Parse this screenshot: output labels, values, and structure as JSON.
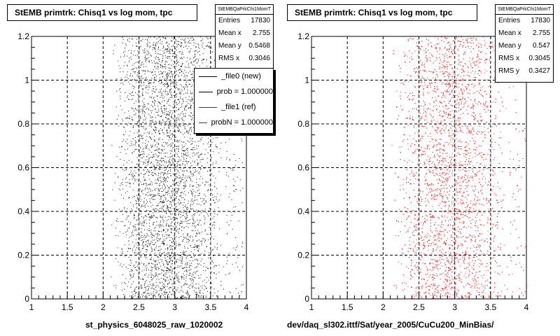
{
  "chart_data": [
    {
      "type": "scatter",
      "title": "StEMB primtrk: Chisq1 vs log mom, tpc",
      "xlabel": "st_physics_6048025_raw_1020002",
      "ylabel": "",
      "xlim": [
        1,
        4
      ],
      "ylim": [
        0,
        1.2
      ],
      "x_ticks": [
        "1",
        "1.5",
        "2",
        "2.5",
        "3",
        "3.5",
        "4"
      ],
      "y_ticks": [
        "0",
        "0.2",
        "0.4",
        "0.6",
        "0.8",
        "1",
        "1.2"
      ],
      "grid": true,
      "marker_color": "#000000",
      "x_distribution": {
        "min": 2.1,
        "max": 3.7,
        "peak": 2.75
      },
      "y_distribution": {
        "min": 0,
        "max": 1.2
      },
      "stats": {
        "header": "StEMBQaPrkChi1MomT",
        "rows": [
          {
            "label": "Entries",
            "value": "17830"
          },
          {
            "label": "Mean x",
            "value": "2.755"
          },
          {
            "label": "Mean y",
            "value": "0.5468"
          },
          {
            "label": "RMS x",
            "value": "0.3046"
          }
        ]
      },
      "legend": {
        "placement": "top-right",
        "entries": [
          {
            "label": "_file0 (new)",
            "color": "#000000"
          },
          {
            "label": "prob = 1.000000",
            "color": "#000000"
          },
          {
            "label": "_file1 (ref)",
            "color": "#cc0000"
          },
          {
            "label": "probN = 1.000000",
            "color": "#cc0000"
          }
        ]
      }
    },
    {
      "type": "scatter",
      "title": "StEMB primtrk: Chisq1 vs log mom, tpc",
      "xlabel": "dev/daq_sl302.ittf/Sat/year_2005/CuCu200_MinBias/",
      "ylabel": "",
      "xlim": [
        1,
        4
      ],
      "ylim": [
        0,
        1.2
      ],
      "x_ticks": [
        "1",
        "1.5",
        "2",
        "2.5",
        "3",
        "3.5",
        "4"
      ],
      "y_ticks": [
        "0",
        "0.2",
        "0.4",
        "0.6",
        "0.8",
        "1",
        "1.2"
      ],
      "grid": true,
      "marker_color": "#ff0000",
      "x_distribution": {
        "min": 2.1,
        "max": 3.75,
        "peak": 2.75
      },
      "y_distribution": {
        "min": 0,
        "max": 1.2
      },
      "stats": {
        "header": "StEMBQaPrkChi1MomT",
        "rows": [
          {
            "label": "Entries",
            "value": "17830"
          },
          {
            "label": "Mean x",
            "value": "2.755"
          },
          {
            "label": "Mean y",
            "value": "0.547"
          },
          {
            "label": "RMS x",
            "value": "0.3045"
          },
          {
            "label": "RMS y",
            "value": "0.3427"
          }
        ]
      }
    }
  ]
}
